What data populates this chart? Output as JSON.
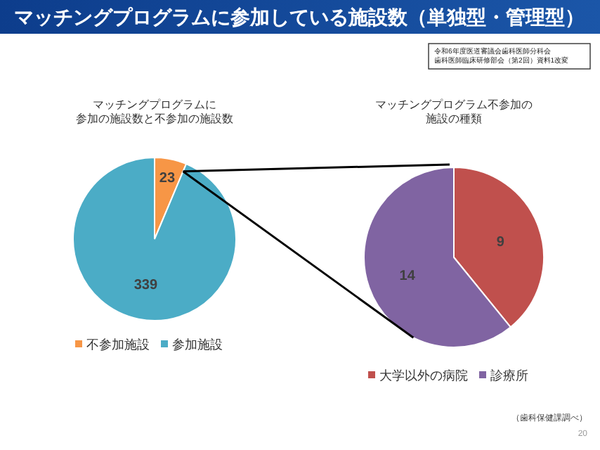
{
  "chart_data": [
    {
      "type": "other",
      "title": "マッチングプログラムに参加している施設数（単独型・管理型）",
      "annotations": [
        "令和6年度医道審議会歯科医師分科会歯科医師臨床研修部会（第2回）資料1改変",
        "（歯科保健課調べ）",
        "20"
      ]
    },
    {
      "type": "pie",
      "title": "マッチングプログラムに参加の施設数と不参加の施設数",
      "categories": [
        "不参加施設",
        "参加施設"
      ],
      "values": [
        23,
        339
      ],
      "colors": [
        "#f79646",
        "#4bacc6"
      ],
      "data_labels": true,
      "legend": "bottom"
    },
    {
      "type": "pie",
      "title": "マッチングプログラム不参加の施設の種類",
      "categories": [
        "大学以外の病院",
        "診療所"
      ],
      "values": [
        9,
        14
      ],
      "colors": [
        "#c0504d",
        "#8064a2"
      ],
      "data_labels": true,
      "legend": "bottom"
    }
  ]
}
